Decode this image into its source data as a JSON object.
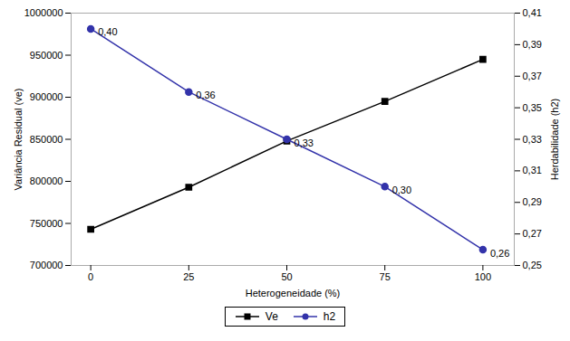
{
  "chart_data": {
    "type": "line",
    "xlabel": "Heterogeneidade (%)",
    "ylabel": "Variância Residual (ve)",
    "y2label": "Herdabilidade (h2)",
    "x": [
      0,
      25,
      50,
      75,
      100
    ],
    "xlim": [
      -5,
      108
    ],
    "xticks": [
      0,
      25,
      50,
      75,
      100
    ],
    "ylim": [
      700000,
      1000000
    ],
    "yticks": [
      700000,
      750000,
      800000,
      850000,
      900000,
      950000,
      1000000
    ],
    "y2lim": [
      0.25,
      0.41
    ],
    "y2ticks": [
      {
        "value": 0.25,
        "label": "0,25"
      },
      {
        "value": 0.27,
        "label": "0,27"
      },
      {
        "value": 0.29,
        "label": "0,29"
      },
      {
        "value": 0.31,
        "label": "0,31"
      },
      {
        "value": 0.33,
        "label": "0,33"
      },
      {
        "value": 0.35,
        "label": "0,35"
      },
      {
        "value": 0.37,
        "label": "0,37"
      },
      {
        "value": 0.39,
        "label": "0,39"
      },
      {
        "value": 0.41,
        "label": "0,41"
      }
    ],
    "series": [
      {
        "name": "Ve",
        "color": "#000000",
        "marker": "square",
        "values": [
          743000,
          793000,
          848000,
          895000,
          945000
        ]
      },
      {
        "name": "h2",
        "color": "#3333AA",
        "marker": "circle",
        "axis": "y2",
        "data_labels": true,
        "values": [
          0.4,
          0.36,
          0.33,
          0.3,
          0.26
        ],
        "value_labels": [
          "0,40",
          "0,36",
          "0,33",
          "0,30",
          "0,26"
        ]
      }
    ],
    "grid": false,
    "legend": "bottom"
  }
}
